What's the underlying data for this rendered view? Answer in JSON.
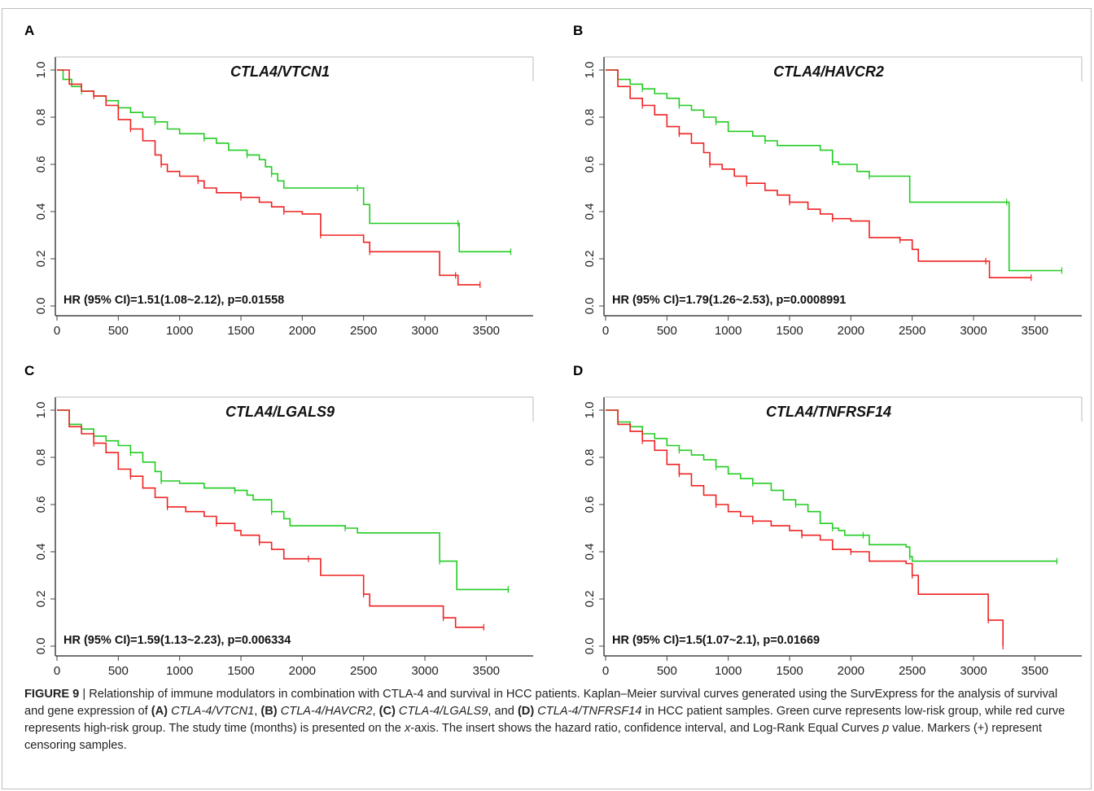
{
  "chart_data": [
    {
      "panel": "A",
      "type": "line",
      "title": "CTLA4/VTCN1",
      "annotation": "HR (95% CI)=1.51(1.08~2.12), p=0.01558",
      "xlabel": "",
      "ylabel": "",
      "xlim": [
        0,
        3750
      ],
      "ylim": [
        0,
        1.0
      ],
      "xticks": [
        0,
        500,
        1000,
        1500,
        2000,
        2500,
        3000,
        3500
      ],
      "yticks": [
        0.0,
        0.2,
        0.4,
        0.6,
        0.8,
        1.0
      ],
      "series": [
        {
          "color": "#22cc22",
          "steps": [
            [
              0,
              1.0
            ],
            [
              50,
              0.96
            ],
            [
              120,
              0.93
            ],
            [
              200,
              0.91
            ],
            [
              300,
              0.89
            ],
            [
              400,
              0.87
            ],
            [
              500,
              0.84
            ],
            [
              600,
              0.82
            ],
            [
              700,
              0.8
            ],
            [
              800,
              0.78
            ],
            [
              900,
              0.75
            ],
            [
              1000,
              0.73
            ],
            [
              1200,
              0.71
            ],
            [
              1300,
              0.69
            ],
            [
              1400,
              0.66
            ],
            [
              1550,
              0.64
            ],
            [
              1650,
              0.62
            ],
            [
              1700,
              0.59
            ],
            [
              1750,
              0.56
            ],
            [
              1800,
              0.53
            ],
            [
              1850,
              0.5
            ],
            [
              2450,
              0.5
            ],
            [
              2500,
              0.43
            ],
            [
              2550,
              0.35
            ],
            [
              3270,
              0.35
            ],
            [
              3280,
              0.23
            ],
            [
              3700,
              0.23
            ]
          ]
        },
        {
          "color": "#ee2222",
          "steps": [
            [
              0,
              1.0
            ],
            [
              100,
              0.94
            ],
            [
              200,
              0.91
            ],
            [
              300,
              0.89
            ],
            [
              400,
              0.85
            ],
            [
              500,
              0.79
            ],
            [
              600,
              0.75
            ],
            [
              700,
              0.7
            ],
            [
              800,
              0.64
            ],
            [
              850,
              0.6
            ],
            [
              900,
              0.57
            ],
            [
              1000,
              0.55
            ],
            [
              1150,
              0.53
            ],
            [
              1200,
              0.5
            ],
            [
              1300,
              0.48
            ],
            [
              1500,
              0.46
            ],
            [
              1650,
              0.44
            ],
            [
              1750,
              0.42
            ],
            [
              1850,
              0.4
            ],
            [
              2000,
              0.39
            ],
            [
              2100,
              0.39
            ],
            [
              2150,
              0.3
            ],
            [
              2450,
              0.3
            ],
            [
              2500,
              0.27
            ],
            [
              2550,
              0.23
            ],
            [
              3100,
              0.23
            ],
            [
              3120,
              0.13
            ],
            [
              3250,
              0.13
            ],
            [
              3270,
              0.09
            ],
            [
              3450,
              0.09
            ]
          ]
        }
      ]
    },
    {
      "panel": "B",
      "type": "line",
      "title": "CTLA4/HAVCR2",
      "annotation": "HR (95% CI)=1.79(1.26~2.53), p=0.0008991",
      "xlabel": "",
      "ylabel": "",
      "xlim": [
        0,
        3750
      ],
      "ylim": [
        0,
        1.0
      ],
      "xticks": [
        0,
        500,
        1000,
        1500,
        2000,
        2500,
        3000,
        3500
      ],
      "yticks": [
        0.0,
        0.2,
        0.4,
        0.6,
        0.8,
        1.0
      ],
      "series": [
        {
          "color": "#22cc22",
          "steps": [
            [
              0,
              1.0
            ],
            [
              100,
              0.96
            ],
            [
              200,
              0.94
            ],
            [
              300,
              0.92
            ],
            [
              400,
              0.9
            ],
            [
              500,
              0.88
            ],
            [
              600,
              0.85
            ],
            [
              700,
              0.83
            ],
            [
              800,
              0.8
            ],
            [
              900,
              0.78
            ],
            [
              1000,
              0.74
            ],
            [
              1200,
              0.72
            ],
            [
              1300,
              0.7
            ],
            [
              1400,
              0.68
            ],
            [
              1750,
              0.66
            ],
            [
              1850,
              0.61
            ],
            [
              1900,
              0.6
            ],
            [
              2050,
              0.57
            ],
            [
              2150,
              0.55
            ],
            [
              2450,
              0.55
            ],
            [
              2480,
              0.44
            ],
            [
              3270,
              0.44
            ],
            [
              3290,
              0.15
            ],
            [
              3720,
              0.15
            ]
          ]
        },
        {
          "color": "#ee2222",
          "steps": [
            [
              0,
              1.0
            ],
            [
              100,
              0.93
            ],
            [
              200,
              0.88
            ],
            [
              300,
              0.85
            ],
            [
              400,
              0.81
            ],
            [
              500,
              0.76
            ],
            [
              600,
              0.73
            ],
            [
              700,
              0.69
            ],
            [
              800,
              0.65
            ],
            [
              850,
              0.6
            ],
            [
              950,
              0.58
            ],
            [
              1050,
              0.55
            ],
            [
              1150,
              0.52
            ],
            [
              1300,
              0.49
            ],
            [
              1400,
              0.47
            ],
            [
              1500,
              0.44
            ],
            [
              1650,
              0.41
            ],
            [
              1750,
              0.39
            ],
            [
              1850,
              0.37
            ],
            [
              2000,
              0.36
            ],
            [
              2150,
              0.29
            ],
            [
              2400,
              0.28
            ],
            [
              2500,
              0.24
            ],
            [
              2550,
              0.19
            ],
            [
              3100,
              0.19
            ],
            [
              3130,
              0.12
            ],
            [
              3470,
              0.12
            ]
          ]
        }
      ]
    },
    {
      "panel": "C",
      "type": "line",
      "title": "CTLA4/LGALS9",
      "annotation": "HR (95% CI)=1.59(1.13~2.23), p=0.006334",
      "xlabel": "",
      "ylabel": "",
      "xlim": [
        0,
        3750
      ],
      "ylim": [
        0,
        1.0
      ],
      "xticks": [
        0,
        500,
        1000,
        1500,
        2000,
        2500,
        3000,
        3500
      ],
      "yticks": [
        0.0,
        0.2,
        0.4,
        0.6,
        0.8,
        1.0
      ],
      "series": [
        {
          "color": "#22cc22",
          "steps": [
            [
              0,
              1.0
            ],
            [
              100,
              0.94
            ],
            [
              200,
              0.92
            ],
            [
              300,
              0.89
            ],
            [
              400,
              0.87
            ],
            [
              500,
              0.85
            ],
            [
              600,
              0.82
            ],
            [
              700,
              0.78
            ],
            [
              800,
              0.74
            ],
            [
              850,
              0.7
            ],
            [
              1000,
              0.69
            ],
            [
              1200,
              0.67
            ],
            [
              1450,
              0.66
            ],
            [
              1550,
              0.64
            ],
            [
              1600,
              0.62
            ],
            [
              1750,
              0.57
            ],
            [
              1850,
              0.54
            ],
            [
              1900,
              0.51
            ],
            [
              2350,
              0.5
            ],
            [
              2450,
              0.48
            ],
            [
              3100,
              0.48
            ],
            [
              3120,
              0.36
            ],
            [
              3230,
              0.36
            ],
            [
              3260,
              0.24
            ],
            [
              3680,
              0.24
            ]
          ]
        },
        {
          "color": "#ee2222",
          "steps": [
            [
              0,
              1.0
            ],
            [
              100,
              0.93
            ],
            [
              200,
              0.9
            ],
            [
              300,
              0.86
            ],
            [
              400,
              0.82
            ],
            [
              500,
              0.75
            ],
            [
              600,
              0.72
            ],
            [
              700,
              0.67
            ],
            [
              800,
              0.63
            ],
            [
              900,
              0.59
            ],
            [
              1050,
              0.57
            ],
            [
              1200,
              0.55
            ],
            [
              1300,
              0.52
            ],
            [
              1450,
              0.49
            ],
            [
              1500,
              0.47
            ],
            [
              1650,
              0.44
            ],
            [
              1750,
              0.41
            ],
            [
              1850,
              0.37
            ],
            [
              2050,
              0.37
            ],
            [
              2150,
              0.3
            ],
            [
              2450,
              0.3
            ],
            [
              2500,
              0.22
            ],
            [
              2550,
              0.17
            ],
            [
              3100,
              0.17
            ],
            [
              3150,
              0.12
            ],
            [
              3250,
              0.08
            ],
            [
              3480,
              0.08
            ]
          ]
        }
      ]
    },
    {
      "panel": "D",
      "type": "line",
      "title": "CTLA4/TNFRSF14",
      "annotation": "HR (95% CI)=1.5(1.07~2.1), p=0.01669",
      "xlabel": "",
      "ylabel": "",
      "xlim": [
        0,
        3750
      ],
      "ylim": [
        0,
        1.0
      ],
      "xticks": [
        0,
        500,
        1000,
        1500,
        2000,
        2500,
        3000,
        3500
      ],
      "yticks": [
        0.0,
        0.2,
        0.4,
        0.6,
        0.8,
        1.0
      ],
      "series": [
        {
          "color": "#22cc22",
          "steps": [
            [
              0,
              1.0
            ],
            [
              100,
              0.95
            ],
            [
              200,
              0.93
            ],
            [
              300,
              0.9
            ],
            [
              400,
              0.88
            ],
            [
              500,
              0.85
            ],
            [
              600,
              0.83
            ],
            [
              700,
              0.81
            ],
            [
              800,
              0.79
            ],
            [
              900,
              0.76
            ],
            [
              1000,
              0.73
            ],
            [
              1100,
              0.71
            ],
            [
              1200,
              0.69
            ],
            [
              1350,
              0.66
            ],
            [
              1450,
              0.62
            ],
            [
              1550,
              0.6
            ],
            [
              1650,
              0.57
            ],
            [
              1750,
              0.52
            ],
            [
              1850,
              0.5
            ],
            [
              1900,
              0.49
            ],
            [
              1950,
              0.47
            ],
            [
              2100,
              0.47
            ],
            [
              2150,
              0.43
            ],
            [
              2450,
              0.42
            ],
            [
              2480,
              0.38
            ],
            [
              2500,
              0.36
            ],
            [
              3680,
              0.36
            ]
          ]
        },
        {
          "color": "#ee2222",
          "steps": [
            [
              0,
              1.0
            ],
            [
              100,
              0.94
            ],
            [
              200,
              0.91
            ],
            [
              300,
              0.87
            ],
            [
              400,
              0.83
            ],
            [
              500,
              0.77
            ],
            [
              600,
              0.73
            ],
            [
              700,
              0.68
            ],
            [
              800,
              0.64
            ],
            [
              900,
              0.6
            ],
            [
              1000,
              0.57
            ],
            [
              1100,
              0.55
            ],
            [
              1200,
              0.53
            ],
            [
              1350,
              0.51
            ],
            [
              1500,
              0.49
            ],
            [
              1600,
              0.47
            ],
            [
              1750,
              0.45
            ],
            [
              1850,
              0.41
            ],
            [
              2000,
              0.4
            ],
            [
              2150,
              0.36
            ],
            [
              2450,
              0.35
            ],
            [
              2500,
              0.3
            ],
            [
              2550,
              0.22
            ],
            [
              3100,
              0.22
            ],
            [
              3120,
              0.11
            ],
            [
              3230,
              0.11
            ],
            [
              3240,
              0.0
            ]
          ]
        }
      ]
    }
  ],
  "caption": {
    "label": "FIGURE 9",
    "separator": " | ",
    "text1": "Relationship of immune modulators in combination with CTLA-4 and survival in HCC patients. Kaplan–Meier survival curves generated using the SurvExpress for the analysis of survival and gene expression of ",
    "a_label": "(A)",
    "a_gene": "CTLA-4/VTCN1",
    "b_label": "(B)",
    "b_gene": "CTLA-4/HAVCR2",
    "c_label": "(C)",
    "c_gene": "CTLA-4/LGALS9",
    "and_text": ", and ",
    "d_label": "(D)",
    "d_gene": "CTLA-4/TNFRSF14",
    "text2": " in HCC patient samples. Green curve represents low-risk group, while red curve represents high-risk group. The study time (months) is presented on the ",
    "x_axis_italic": "x",
    "text3": "-axis. The insert shows the hazard ratio, confidence interval, and Log-Rank Equal Curves ",
    "p_italic": "p",
    "text4": " value. Markers (+) represent censoring samples."
  }
}
